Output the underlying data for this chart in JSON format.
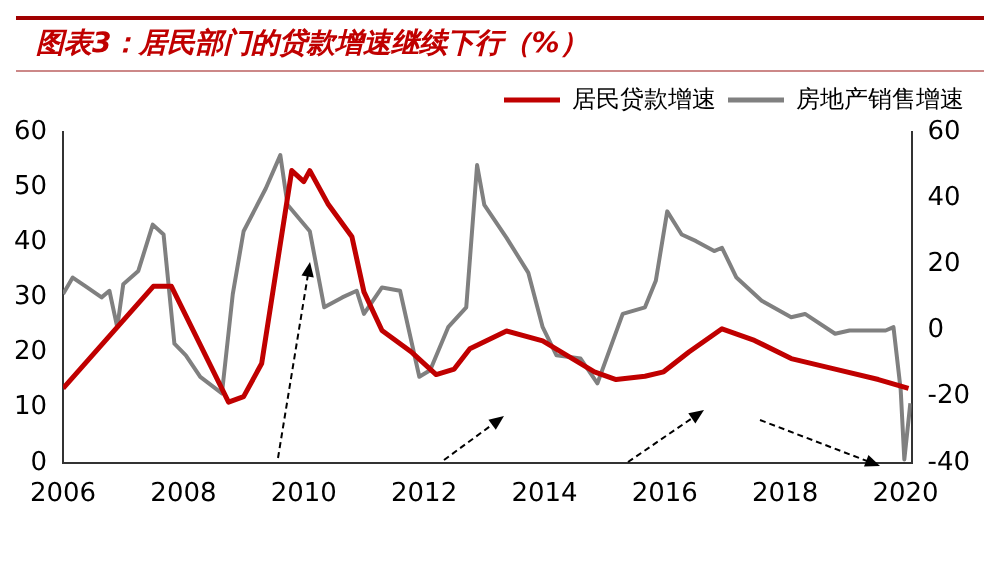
{
  "chart_data": {
    "type": "line",
    "title": "图表3：居民部门的贷款增速继续下行（%）",
    "xlim": [
      2006,
      2020.1
    ],
    "xticks": [
      2006,
      2008,
      2010,
      2012,
      2014,
      2016,
      2018,
      2020
    ],
    "ylim": [
      0,
      60
    ],
    "yticks": [
      0,
      10,
      20,
      30,
      40,
      50,
      60
    ],
    "y2lim": [
      -40,
      60
    ],
    "y2ticks": [
      -40,
      -20,
      0,
      20,
      40,
      60
    ],
    "grid": false,
    "legend": "top",
    "marker": "none",
    "line_style": "solid",
    "series": [
      {
        "name": "居民贷款增速",
        "color": "#c00000",
        "x": [
          2006.0,
          2007.5,
          2007.8,
          2008.75,
          2009.0,
          2009.3,
          2009.8,
          2010.0,
          2010.1,
          2010.4,
          2010.8,
          2011.0,
          2011.3,
          2011.8,
          2012.2,
          2012.5,
          2012.76,
          2013.37,
          2013.97,
          2014.83,
          2015.19,
          2015.67,
          2015.98,
          2016.4,
          2016.95,
          2017.49,
          2018.1,
          2018.83,
          2019.55,
          2020.05
        ],
        "values": [
          13.5,
          32,
          32,
          11,
          12,
          18,
          53,
          51,
          53,
          47,
          41,
          31,
          24,
          20,
          16,
          17,
          20.7,
          23.9,
          22.1,
          16.5,
          15.1,
          15.7,
          16.5,
          20.1,
          24.3,
          22.2,
          18.9,
          17,
          15.1,
          13.5
        ]
      },
      {
        "name": "房地产销售增速",
        "color": "#808080",
        "axis": "y2",
        "x": [
          2006.0,
          2006.16,
          2006.4,
          2006.64,
          2006.77,
          2006.9,
          2007.0,
          2007.25,
          2007.49,
          2007.67,
          2007.85,
          2008.04,
          2008.28,
          2008.64,
          2008.82,
          2009.0,
          2009.37,
          2009.61,
          2009.73,
          2010.1,
          2010.34,
          2010.64,
          2010.88,
          2011.0,
          2011.3,
          2011.6,
          2011.92,
          2012.1,
          2012.4,
          2012.7,
          2012.88,
          2013.0,
          2013.37,
          2013.73,
          2013.97,
          2014.2,
          2014.6,
          2014.88,
          2015.3,
          2015.67,
          2015.85,
          2016.04,
          2016.28,
          2016.52,
          2016.82,
          2016.95,
          2017.19,
          2017.61,
          2018.1,
          2018.33,
          2018.83,
          2019.07,
          2019.67,
          2019.8,
          2019.92,
          2019.98,
          2020.08
        ],
        "values": [
          11,
          16,
          13,
          10,
          12,
          1,
          14,
          18,
          32,
          29,
          -4,
          -7.5,
          -14,
          -19,
          11,
          30,
          43,
          53,
          38,
          30,
          7,
          10,
          12,
          5,
          13,
          12,
          -14,
          -12,
          1,
          7,
          50,
          38,
          28,
          17.5,
          1,
          -7.5,
          -8.5,
          -16,
          5,
          7,
          15,
          36,
          29,
          27,
          24,
          25,
          16,
          9,
          4,
          5,
          -1,
          0,
          0,
          1,
          -18,
          -39,
          -22
        ]
      }
    ]
  }
}
